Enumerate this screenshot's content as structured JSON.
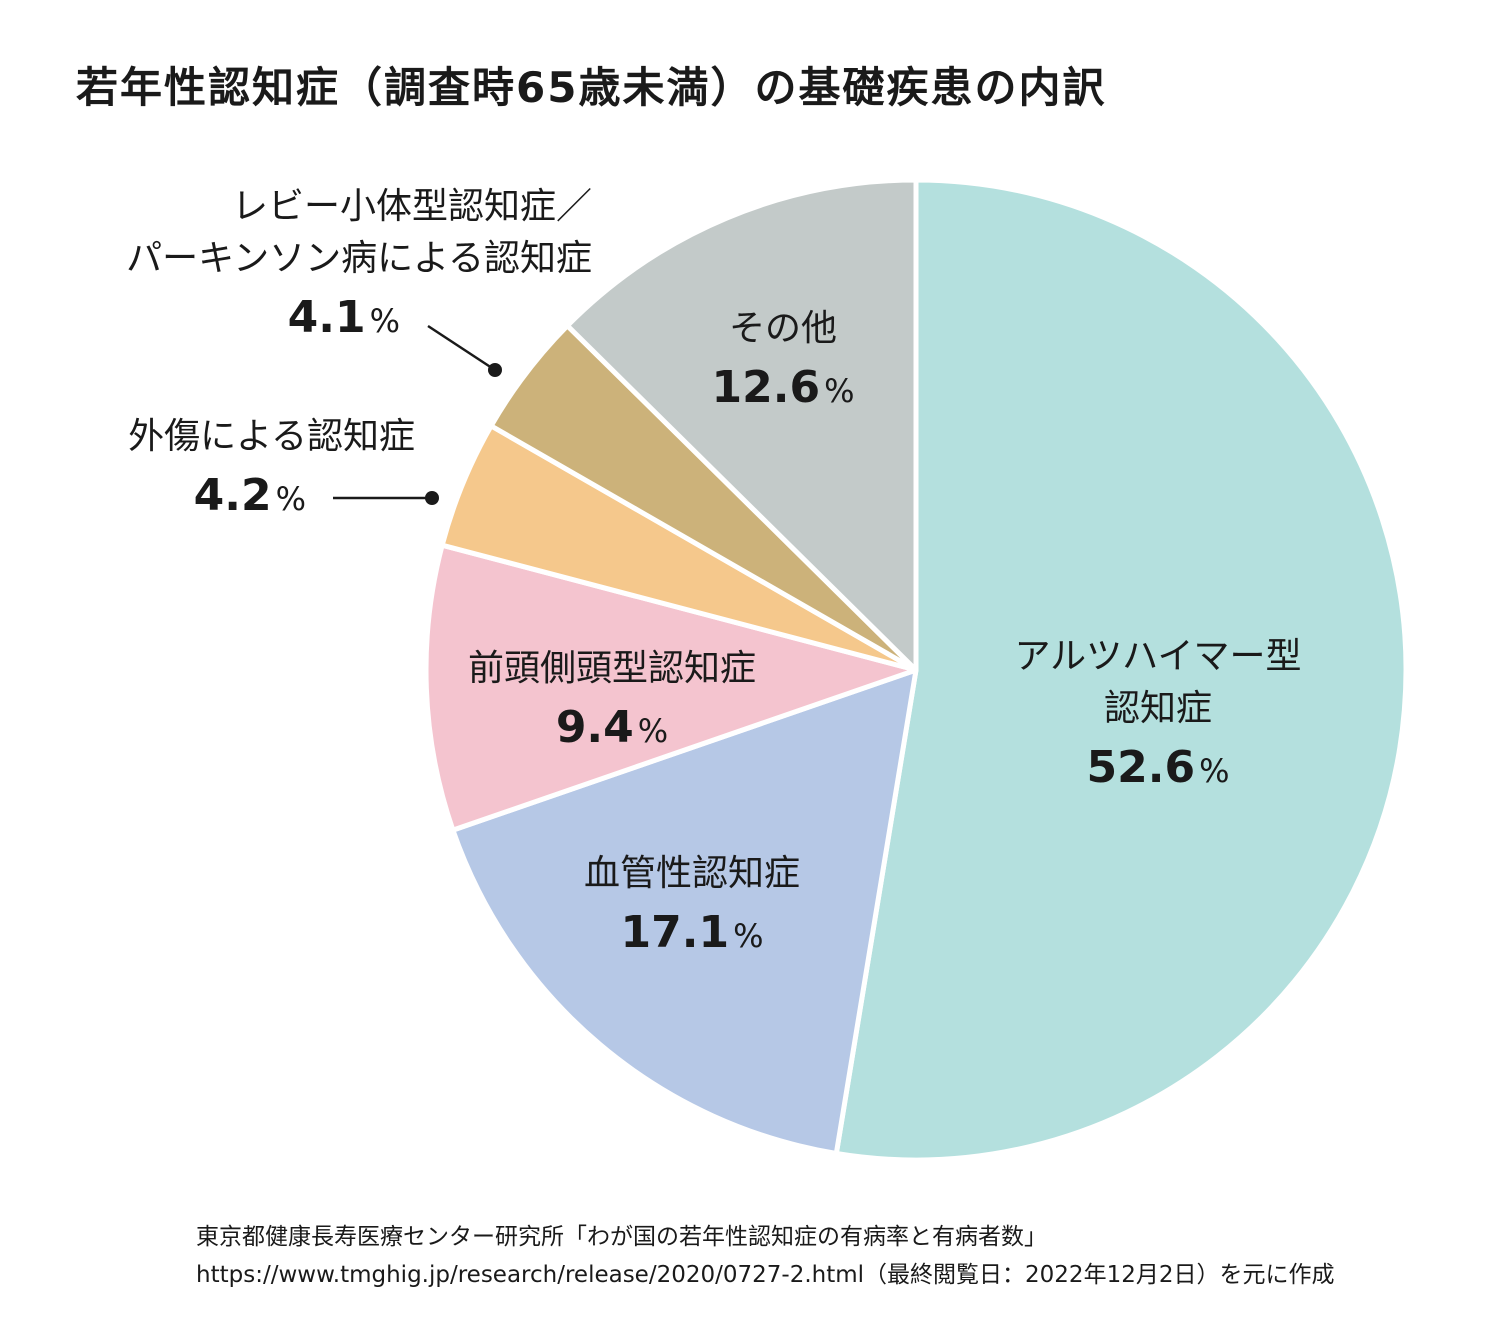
{
  "title": "若年性認知症（調査時65歳未満）の基礎疾患の内訳",
  "chart_data": {
    "type": "pie",
    "title": "若年性認知症（調査時65歳未満）の基礎疾患の内訳",
    "unit": "%",
    "start_angle_deg": 0,
    "direction": "clockwise",
    "slices": [
      {
        "name": "アルツハイマー型認知症",
        "label_lines": [
          "アルツハイマー型",
          "認知症"
        ],
        "value": 52.6,
        "value_text": "52.6",
        "color": "#b4e0de"
      },
      {
        "name": "血管性認知症",
        "label_lines": [
          "血管性認知症"
        ],
        "value": 17.1,
        "value_text": "17.1",
        "color": "#b6c8e6"
      },
      {
        "name": "前頭側頭型認知症",
        "label_lines": [
          "前頭側頭型認知症"
        ],
        "value": 9.4,
        "value_text": "9.4",
        "color": "#f4c4cf"
      },
      {
        "name": "外傷による認知症",
        "label_lines": [
          "外傷による認知症"
        ],
        "value": 4.2,
        "value_text": "4.2",
        "color": "#f5c88c"
      },
      {
        "name": "レビー小体型認知症／パーキンソン病による認知症",
        "label_lines": [
          "レビー小体型認知症／",
          "パーキンソン病による認知症"
        ],
        "value": 4.1,
        "value_text": "4.1",
        "color": "#ccb27a"
      },
      {
        "name": "その他",
        "label_lines": [
          "その他"
        ],
        "value": 12.6,
        "value_text": "12.6",
        "color": "#c3cac9"
      }
    ]
  },
  "source": {
    "line1": "東京都健康長寿医療センター研究所「わが国の若年性認知症の有病率と有病者数」",
    "line2": "https://www.tmghig.jp/research/release/2020/0727-2.html（最終閲覧日：2022年12月2日）を元に作成"
  }
}
